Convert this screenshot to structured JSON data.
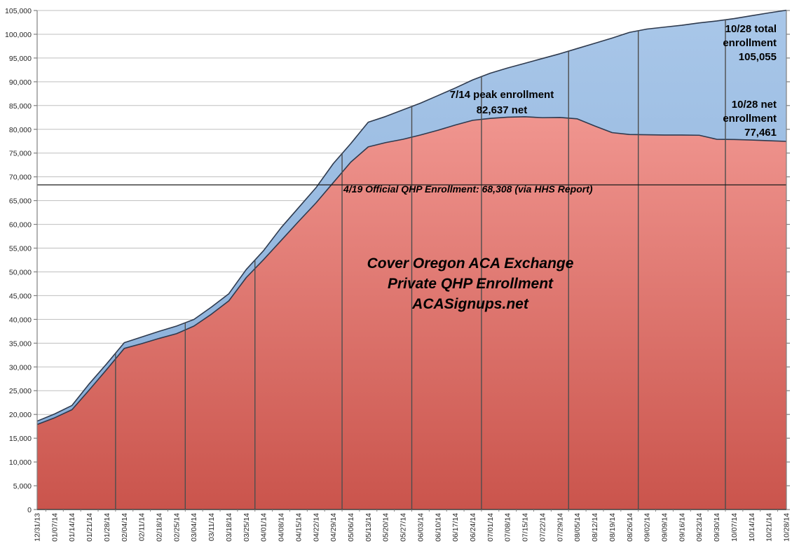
{
  "chart_data": {
    "type": "area",
    "title": {
      "line1": "Cover Oregon ACA Exchange",
      "line2": "Private QHP Enrollment",
      "line3": "ACASignups.net"
    },
    "x_labels": [
      "12/31/13",
      "01/07/14",
      "01/14/14",
      "01/21/14",
      "01/28/14",
      "02/04/14",
      "02/11/14",
      "02/18/14",
      "02/25/14",
      "03/04/14",
      "03/11/14",
      "03/18/14",
      "03/25/14",
      "04/01/14",
      "04/08/14",
      "04/15/14",
      "04/22/14",
      "04/29/14",
      "05/06/14",
      "05/13/14",
      "05/20/14",
      "05/27/14",
      "06/03/14",
      "06/10/14",
      "06/17/14",
      "06/24/14",
      "07/01/14",
      "07/08/14",
      "07/15/14",
      "07/22/14",
      "07/29/14",
      "08/05/14",
      "08/12/14",
      "08/19/14",
      "08/26/14",
      "09/02/14",
      "09/09/14",
      "09/16/14",
      "09/23/14",
      "09/30/14",
      "10/07/14",
      "10/14/14",
      "10/21/14",
      "10/28/14"
    ],
    "series": [
      {
        "name": "total enrollment",
        "fill_top": "#a9c7e9",
        "fill_bottom": "#82a9d5",
        "line_color": "#2e3a4e",
        "values": [
          18600,
          20100,
          21900,
          26500,
          30700,
          35100,
          36300,
          37500,
          38600,
          40000,
          42600,
          45400,
          50500,
          54500,
          59300,
          63500,
          67700,
          72800,
          77000,
          81500,
          82700,
          84100,
          85500,
          87100,
          88700,
          90400,
          91800,
          92900,
          93900,
          94900,
          95900,
          97000,
          98100,
          99200,
          100400,
          101100,
          101500,
          101900,
          102400,
          102800,
          103300,
          103900,
          104500,
          105055
        ]
      },
      {
        "name": "net enrollment",
        "fill_top": "#f0958f",
        "fill_bottom": "#ca544c",
        "line_color": "#2e3a4e",
        "values": [
          17900,
          19300,
          21000,
          25200,
          29500,
          33900,
          34900,
          36000,
          37000,
          38600,
          41100,
          43900,
          48800,
          52600,
          56600,
          60600,
          64500,
          68800,
          73100,
          76300,
          77200,
          77900,
          78800,
          79800,
          80900,
          81900,
          82300,
          82550,
          82637,
          82450,
          82500,
          82200,
          80700,
          79300,
          78900,
          78850,
          78800,
          78800,
          78750,
          77900,
          77850,
          77750,
          77600,
          77461
        ]
      }
    ],
    "ylim": [
      0,
      105000
    ],
    "ytick_step": 5000,
    "grid": true,
    "legend": "none",
    "month_gridline_positions": [
      4.5,
      8.5,
      12.5,
      17.5,
      21.5,
      25.5,
      30.5,
      34.5,
      39.5
    ],
    "ref_line": {
      "value": 68308,
      "label": "4/19 Official QHP Enrollment: 68,308 (via HHS Report)"
    },
    "annotations": {
      "peak": {
        "line1": "7/14 peak enrollment",
        "line2": "82,637 net"
      },
      "total": {
        "line1": "10/28 total",
        "line2": "enrollment",
        "line3": "105,055"
      },
      "net": {
        "line1": "10/28 net",
        "line2": "enrollment",
        "line3": "77,461"
      }
    },
    "colors": {
      "gridline": "#bfbfbf",
      "axis": "#808080",
      "axis_bottom": "#404040",
      "dropline": "#4d4d4d",
      "ref_line": "#1a1a1a",
      "tick_label": "#262626"
    }
  }
}
